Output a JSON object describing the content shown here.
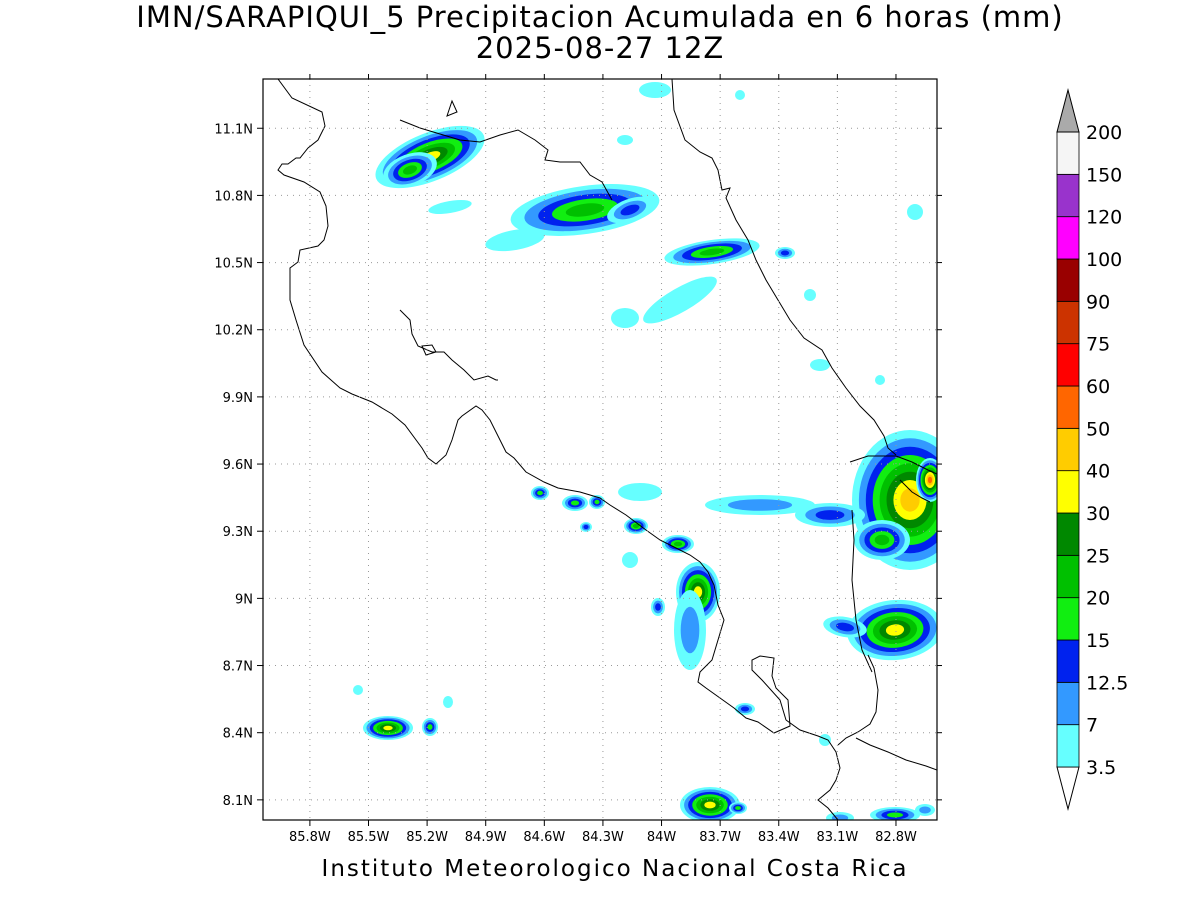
{
  "title": {
    "line1": "IMN/SARAPIQUI_5 Precipitacion Acumulada en 6 horas (mm)",
    "line2": "2025-08-27 12Z"
  },
  "footer": "Instituto Meteorologico Nacional Costa Rica",
  "map": {
    "lon_range": [
      -86.04,
      -82.59
    ],
    "lat_range": [
      8.01,
      11.32
    ],
    "lon_ticks": [
      "85.8W",
      "85.5W",
      "85.2W",
      "84.9W",
      "84.6W",
      "84.3W",
      "84W",
      "83.7W",
      "83.4W",
      "83.1W",
      "82.8W"
    ],
    "lon_values": [
      -85.8,
      -85.5,
      -85.2,
      -84.9,
      -84.6,
      -84.3,
      -84.0,
      -83.7,
      -83.4,
      -83.1,
      -82.8
    ],
    "lat_ticks": [
      "8.1N",
      "8.4N",
      "8.7N",
      "9N",
      "9.3N",
      "9.6N",
      "9.9N",
      "10.2N",
      "10.5N",
      "10.8N",
      "11.1N"
    ],
    "lat_values": [
      8.1,
      8.4,
      8.7,
      9.0,
      9.3,
      9.6,
      9.9,
      10.2,
      10.5,
      10.8,
      11.1
    ],
    "grid": true
  },
  "colorbar": {
    "levels": [
      "3.5",
      "7",
      "12.5",
      "15",
      "20",
      "25",
      "30",
      "40",
      "50",
      "60",
      "75",
      "90",
      "100",
      "120",
      "150",
      "200"
    ],
    "colors": [
      "#66ffff",
      "#3399ff",
      "#0022ee",
      "#11ee11",
      "#00c000",
      "#008800",
      "#ffff00",
      "#ffcc00",
      "#ff6600",
      "#ff0000",
      "#cc3300",
      "#990000",
      "#ff00ff",
      "#9933cc",
      "#f5f5f5",
      "#aaaaaa"
    ]
  }
}
